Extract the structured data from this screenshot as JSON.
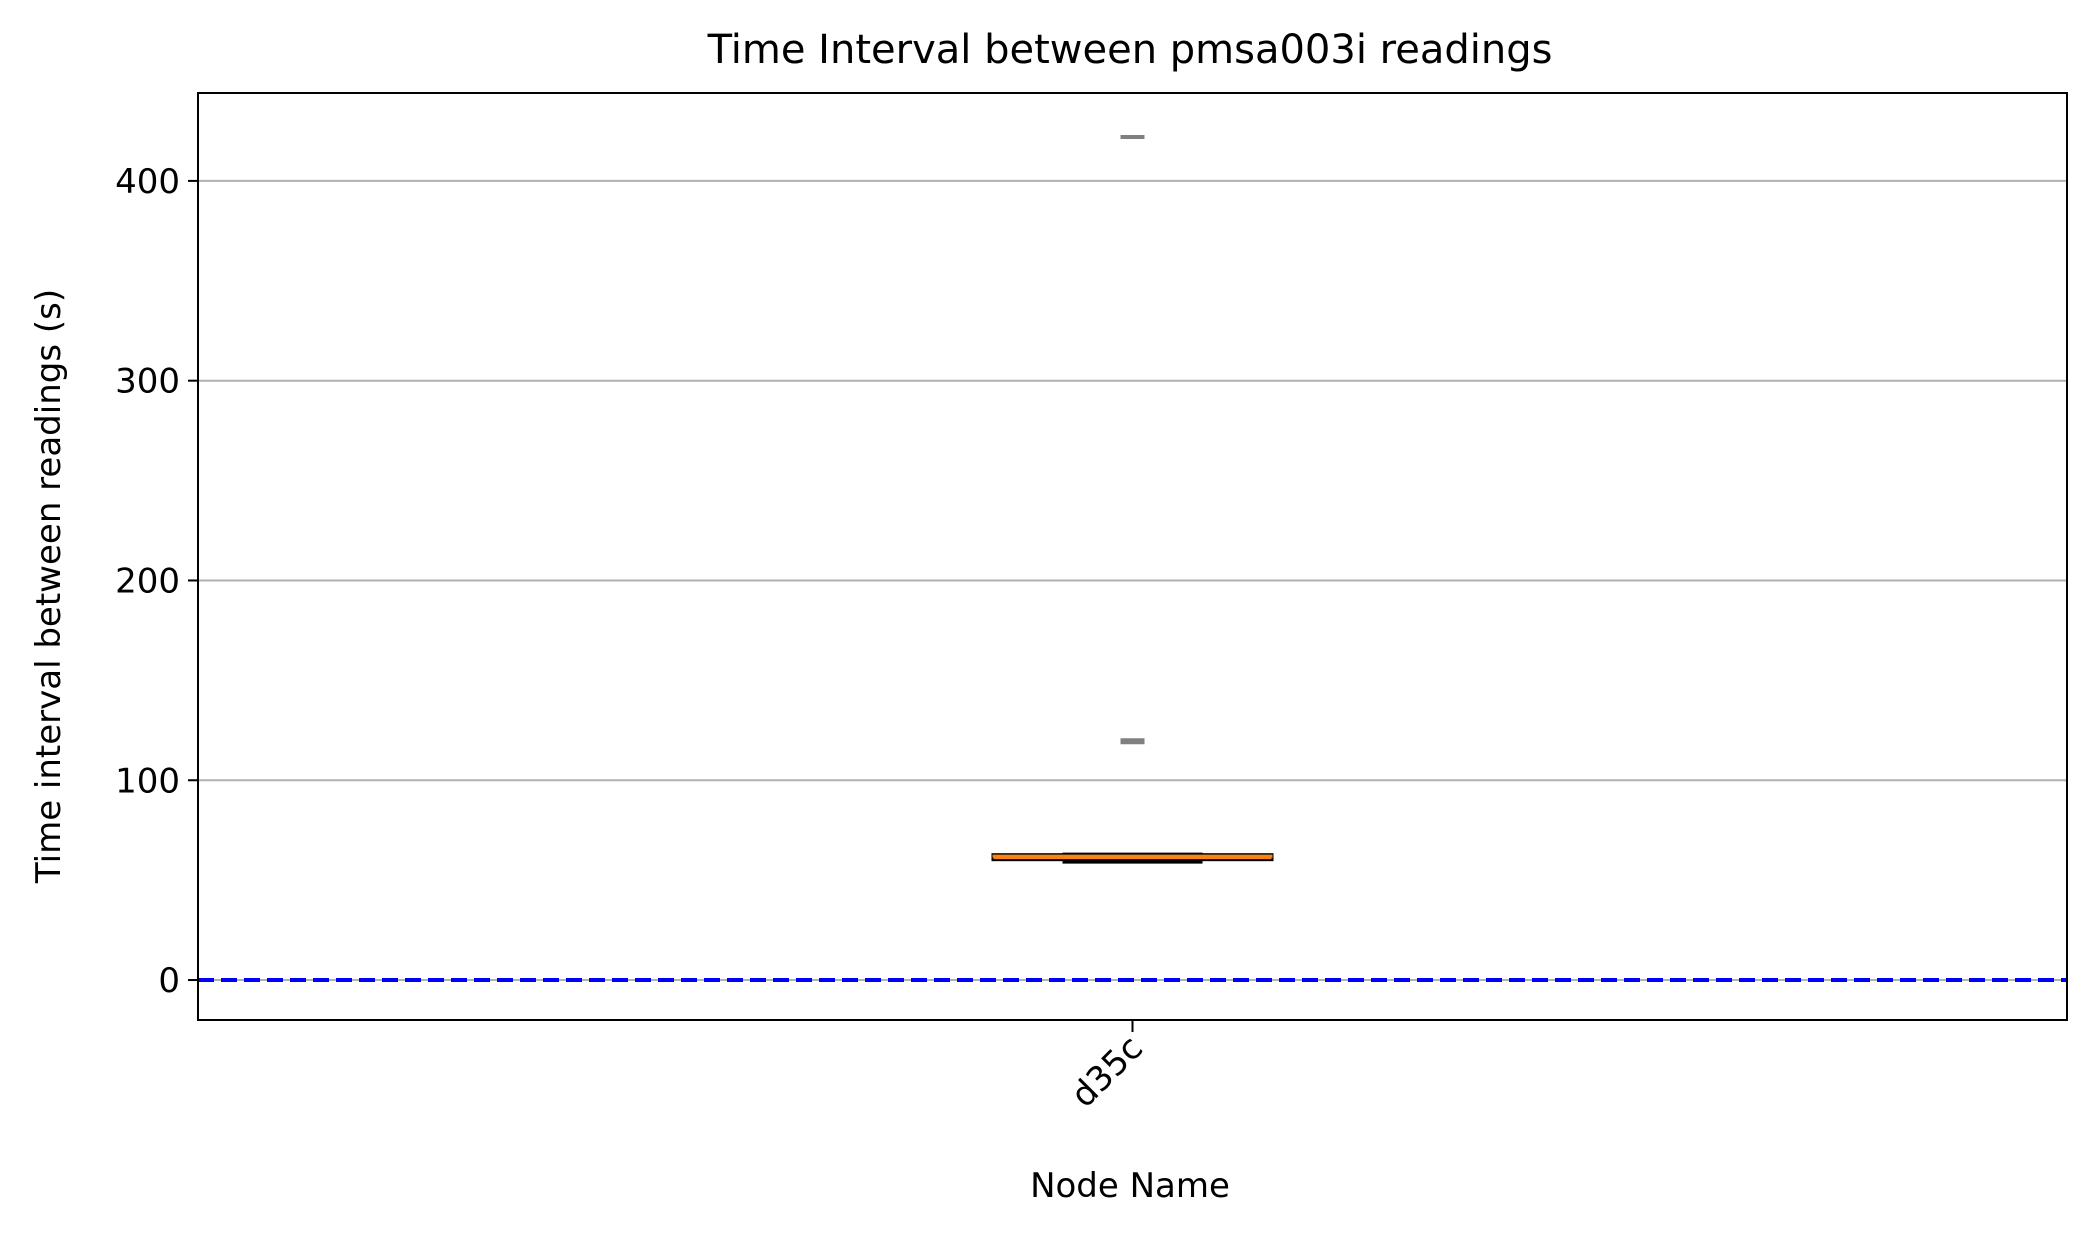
{
  "chart_data": {
    "type": "box",
    "title": "Time Interval between pmsa003i readings",
    "xlabel": "Node Name",
    "ylabel": "Time interval between readings (s)",
    "categories": [
      "d35c"
    ],
    "ylim": [
      -20,
      444
    ],
    "yticks": [
      0,
      100,
      200,
      300,
      400
    ],
    "grid": "horizontal",
    "boxes": [
      {
        "category": "d35c",
        "whisker_low": 59,
        "q1": 60,
        "median": 62,
        "q3": 63,
        "whisker_high": 63,
        "fliers": [
          119,
          120,
          422
        ]
      }
    ],
    "reference_line": {
      "y": 0,
      "style": "dashed"
    },
    "colors": {
      "box_fill": "#f58518",
      "box_edge": "#000000",
      "flier": "#808080",
      "grid": "#b0b0b0",
      "reference_line": "#0000ff"
    }
  }
}
